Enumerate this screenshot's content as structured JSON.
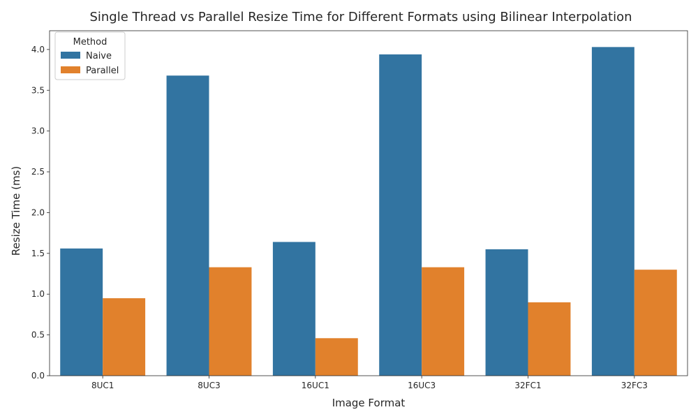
{
  "chart_data": {
    "type": "bar",
    "title": "Single Thread vs Parallel Resize Time for Different Formats using Bilinear Interpolation",
    "xlabel": "Image Format",
    "ylabel": "Resize Time (ms)",
    "categories": [
      "8UC1",
      "8UC3",
      "16UC1",
      "16UC3",
      "32FC1",
      "32FC3"
    ],
    "series": [
      {
        "name": "Naive",
        "color": "#3274a1",
        "values": [
          1.56,
          3.68,
          1.64,
          3.94,
          1.55,
          4.03
        ]
      },
      {
        "name": "Parallel",
        "color": "#e1812c",
        "values": [
          0.95,
          1.33,
          0.46,
          1.33,
          0.9,
          1.3
        ]
      }
    ],
    "ylim": [
      0,
      4.23
    ],
    "yticks": [
      "0.0",
      "0.5",
      "1.0",
      "1.5",
      "2.0",
      "2.5",
      "3.0",
      "3.5",
      "4.0"
    ],
    "grid": false,
    "legend": {
      "title": "Method",
      "placement": "top-left"
    }
  }
}
